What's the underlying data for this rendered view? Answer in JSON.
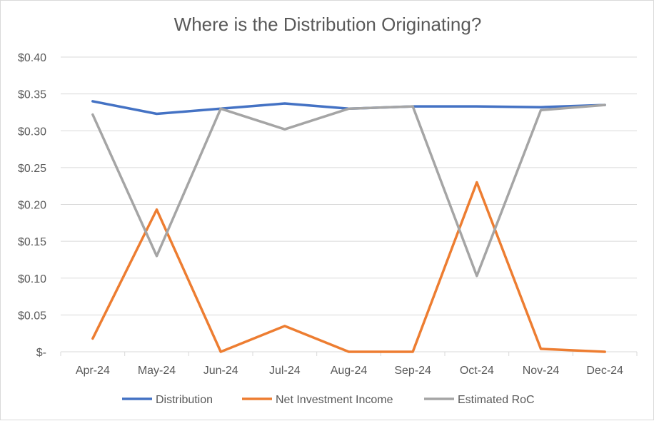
{
  "chart_data": {
    "type": "line",
    "title": "Where is the Distribution Originating?",
    "categories": [
      "Apr-24",
      "May-24",
      "Jun-24",
      "Jul-24",
      "Aug-24",
      "Sep-24",
      "Oct-24",
      "Nov-24",
      "Dec-24"
    ],
    "series": [
      {
        "name": "Distribution",
        "color": "#4472c4",
        "values": [
          0.34,
          0.323,
          0.33,
          0.337,
          0.33,
          0.333,
          0.333,
          0.332,
          0.335
        ]
      },
      {
        "name": "Net Investment Income",
        "color": "#ed7d31",
        "values": [
          0.018,
          0.193,
          0.0,
          0.035,
          0.0,
          0.0,
          0.23,
          0.004,
          0.0
        ]
      },
      {
        "name": "Estimated RoC",
        "color": "#a5a5a5",
        "values": [
          0.322,
          0.13,
          0.33,
          0.302,
          0.33,
          0.333,
          0.103,
          0.328,
          0.335
        ]
      }
    ],
    "ylim": [
      0,
      0.4
    ],
    "yticks": [
      0,
      0.05,
      0.1,
      0.15,
      0.2,
      0.25,
      0.3,
      0.35,
      0.4
    ],
    "ytick_labels": [
      "$-",
      "$0.05",
      "$0.10",
      "$0.15",
      "$0.20",
      "$0.25",
      "$0.30",
      "$0.35",
      "$0.40"
    ],
    "grid": true,
    "legend": "bottom"
  }
}
